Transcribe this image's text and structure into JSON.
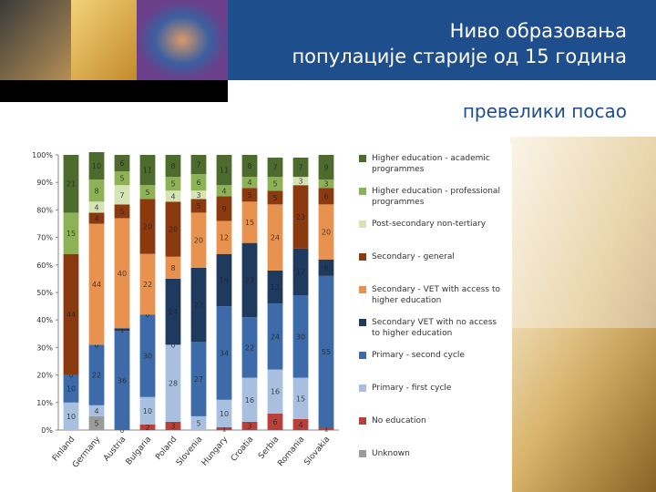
{
  "slide": {
    "title": [
      "Ниво образовања",
      "популације старије од 15 година"
    ],
    "subtitle": "превелики посао"
  },
  "chart_data": {
    "type": "stacked-bar",
    "categories": [
      "Finland",
      "Germany",
      "Austria",
      "Bulgaria",
      "Poland",
      "Slovenia",
      "Hungary",
      "Croatia",
      "Serbia",
      "Romania",
      "Slovakia"
    ],
    "series": [
      {
        "name": "Unknown",
        "color": "#9a9a9a",
        "values": [
          null,
          5,
          0,
          null,
          null,
          null,
          null,
          null,
          null,
          null,
          null
        ]
      },
      {
        "name": "No education",
        "color": "#b8403a",
        "values": [
          null,
          null,
          null,
          2,
          3,
          null,
          1,
          3,
          6,
          4,
          1
        ]
      },
      {
        "name": "Primary - first cycle",
        "color": "#a9bfe0",
        "values": [
          10,
          4,
          null,
          10,
          28,
          5,
          10,
          16,
          16,
          15,
          null
        ]
      },
      {
        "name": "Primary - second cycle",
        "color": "#3d6aa8",
        "values": [
          10,
          22,
          36,
          30,
          0,
          27,
          34,
          22,
          24,
          30,
          55
        ]
      },
      {
        "name": "Secondary VET with no access to higher education",
        "color": "#1f3a5f",
        "values": [
          0,
          0,
          1,
          0,
          24,
          27,
          19,
          27,
          12,
          17,
          6
        ]
      },
      {
        "name": "Secondary - VET with access to higher education",
        "color": "#e8924f",
        "values": [
          null,
          44,
          40,
          22,
          8,
          20,
          12,
          15,
          24,
          null,
          20
        ]
      },
      {
        "name": "Secondary - general",
        "color": "#8b3a0f",
        "values": [
          44,
          4,
          5,
          20,
          20,
          5,
          9,
          5,
          5,
          23,
          6
        ]
      },
      {
        "name": "Post-secondary non-tertiary",
        "color": "#d6e4b5",
        "values": [
          null,
          4,
          7,
          null,
          4,
          3,
          null,
          null,
          null,
          3,
          null
        ]
      },
      {
        "name": "Higher education - professional programmes",
        "color": "#8db255",
        "values": [
          15,
          8,
          5,
          5,
          5,
          6,
          4,
          4,
          5,
          null,
          3
        ]
      },
      {
        "name": "Higher education - academic programmes",
        "color": "#4e6b2e",
        "values": [
          21,
          10,
          6,
          11,
          8,
          7,
          11,
          8,
          7,
          7,
          9
        ]
      }
    ],
    "ylim": [
      0,
      100
    ],
    "yticks": [
      {
        "value": 0,
        "label": "0%"
      },
      {
        "value": 10,
        "label": "10%"
      },
      {
        "value": 20,
        "label": "20%"
      },
      {
        "value": 30,
        "label": "30%"
      },
      {
        "value": 40,
        "label": "40%"
      },
      {
        "value": 50,
        "label": "50%"
      },
      {
        "value": 60,
        "label": "60%"
      },
      {
        "value": 70,
        "label": "70%"
      },
      {
        "value": 80,
        "label": "80%"
      },
      {
        "value": 90,
        "label": "90%"
      },
      {
        "value": 100,
        "label": "100%"
      }
    ],
    "grid": false,
    "legend": "right"
  }
}
